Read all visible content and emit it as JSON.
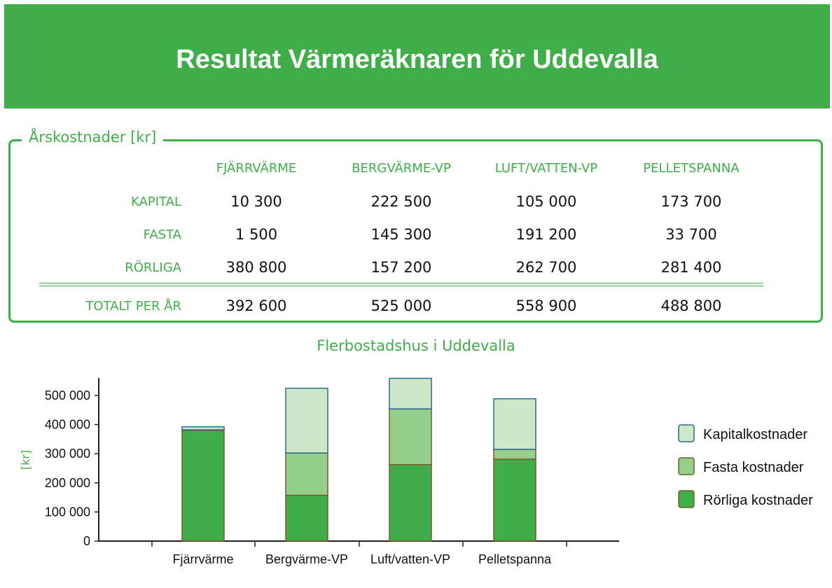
{
  "header": {
    "title": "Resultat Värmeräknaren för Uddevalla"
  },
  "costs": {
    "legend": "Årskostnader  [kr]",
    "columns": [
      "FJÄRRVÄRME",
      "BERGVÄRME-VP",
      "LUFT/VATTEN-VP",
      "PELLETSPANNA"
    ],
    "rows": [
      {
        "label": "KAPITAL",
        "values": [
          "10 300",
          "222 500",
          "105 000",
          "173 700"
        ]
      },
      {
        "label": "FASTA",
        "values": [
          "1 500",
          "145 300",
          "191 200",
          "33 700"
        ]
      },
      {
        "label": "RÖRLIGA",
        "values": [
          "380 800",
          "157 200",
          "262 700",
          "281 400"
        ]
      }
    ],
    "total": {
      "label": "TOTALT PER ÅR",
      "values": [
        "392 600",
        "525 000",
        "558 900",
        "488 800"
      ]
    }
  },
  "chart_data": {
    "type": "bar",
    "stacked": true,
    "title": "Flerbostadshus i Uddevalla",
    "ylabel": "[kr]",
    "xlabel": "",
    "ylim": [
      0,
      550000
    ],
    "yticks": [
      0,
      100000,
      200000,
      300000,
      400000,
      500000
    ],
    "ytick_labels": [
      "0",
      "100 000",
      "200 000",
      "300 000",
      "400 000",
      "500 000"
    ],
    "categories": [
      "Fjärrvärme",
      "Bergvärme-VP",
      "Luft/vatten-VP",
      "Pelletspanna"
    ],
    "series": [
      {
        "name": "Rörliga kostnader",
        "values": [
          380800,
          157200,
          262700,
          281400
        ],
        "color": "#3fae49"
      },
      {
        "name": "Fasta kostnader",
        "values": [
          1500,
          145300,
          191200,
          33700
        ],
        "color": "#94cf8c"
      },
      {
        "name": "Kapitalkostnader",
        "values": [
          10300,
          222500,
          105000,
          173700
        ],
        "color": "#cde8c8"
      }
    ],
    "legend_order": [
      "Kapitalkostnader",
      "Fasta kostnader",
      "Rörliga kostnader"
    ],
    "legend_position": "right",
    "grid": false
  }
}
